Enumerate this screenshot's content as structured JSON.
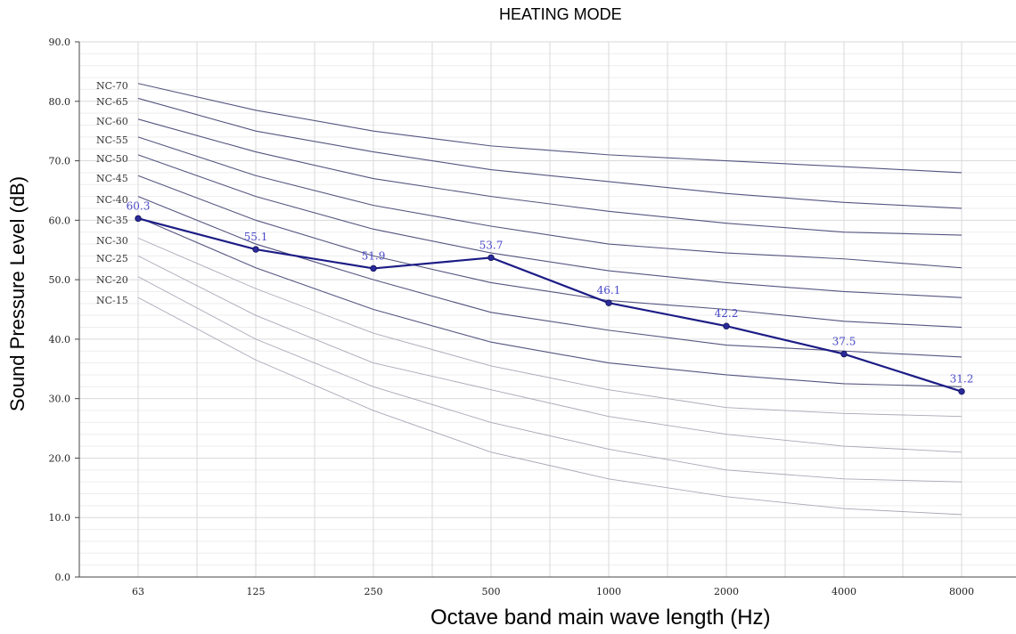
{
  "chart_data": {
    "type": "line",
    "title": "HEATING MODE",
    "xlabel": "Octave band main wave length (Hz)",
    "ylabel": "Sound Pressure Level (dB)",
    "categories": [
      "63",
      "125",
      "250",
      "500",
      "1000",
      "2000",
      "4000",
      "8000"
    ],
    "ylim": [
      0,
      90
    ],
    "yticks": [
      "0.0",
      "10.0",
      "20.0",
      "30.0",
      "40.0",
      "50.0",
      "60.0",
      "70.0",
      "80.0",
      "90.0"
    ],
    "grid": true,
    "series": [
      {
        "name": "",
        "values": [
          60.3,
          55.1,
          51.9,
          53.7,
          46.1,
          42.2,
          37.5,
          31.2
        ],
        "labels": [
          "60.3",
          "55.1",
          "51.9",
          "53.7",
          "46.1",
          "42.2",
          "37.5",
          "31.2"
        ]
      }
    ],
    "nc_curves": [
      {
        "name": "NC-70",
        "values": [
          83.0,
          78.5,
          75.0,
          72.5,
          71.0,
          70.0,
          69.0,
          68.0
        ]
      },
      {
        "name": "NC-65",
        "values": [
          80.5,
          75.0,
          71.5,
          68.5,
          66.5,
          64.5,
          63.0,
          62.0
        ]
      },
      {
        "name": "NC-60",
        "values": [
          77.0,
          71.5,
          67.0,
          64.0,
          61.5,
          59.5,
          58.0,
          57.5
        ]
      },
      {
        "name": "NC-55",
        "values": [
          74.0,
          67.5,
          62.5,
          59.0,
          56.0,
          54.5,
          53.5,
          52.0
        ]
      },
      {
        "name": "NC-50",
        "values": [
          71.0,
          64.0,
          58.5,
          54.5,
          51.5,
          49.5,
          48.0,
          47.0
        ]
      },
      {
        "name": "NC-45",
        "values": [
          67.5,
          60.0,
          54.0,
          49.5,
          46.5,
          45.0,
          43.0,
          42.0
        ]
      },
      {
        "name": "NC-40",
        "values": [
          64.0,
          56.0,
          50.0,
          44.5,
          41.5,
          39.0,
          38.0,
          37.0
        ]
      },
      {
        "name": "NC-35",
        "values": [
          60.5,
          52.0,
          45.0,
          39.5,
          36.0,
          34.0,
          32.5,
          32.0
        ]
      },
      {
        "name": "NC-30",
        "values": [
          57.0,
          48.5,
          41.0,
          35.5,
          31.5,
          28.5,
          27.5,
          27.0
        ]
      },
      {
        "name": "NC-25",
        "values": [
          54.0,
          44.0,
          36.0,
          31.5,
          27.0,
          24.0,
          22.0,
          21.0
        ]
      },
      {
        "name": "NC-20",
        "values": [
          50.5,
          40.0,
          32.0,
          26.0,
          21.5,
          18.0,
          16.5,
          16.0
        ]
      },
      {
        "name": "NC-15",
        "values": [
          47.0,
          36.5,
          28.0,
          21.0,
          16.5,
          13.5,
          11.5,
          10.5
        ]
      }
    ],
    "colors": {
      "series": "#1c1c86",
      "marker": "#2a2a9a",
      "nc_dark": "#555580",
      "nc_light": "#a8a8b8",
      "grid_major": "#dadada",
      "grid_minor": "#ededed",
      "axis": "#444444",
      "data_label": "#4a4ac8"
    }
  }
}
